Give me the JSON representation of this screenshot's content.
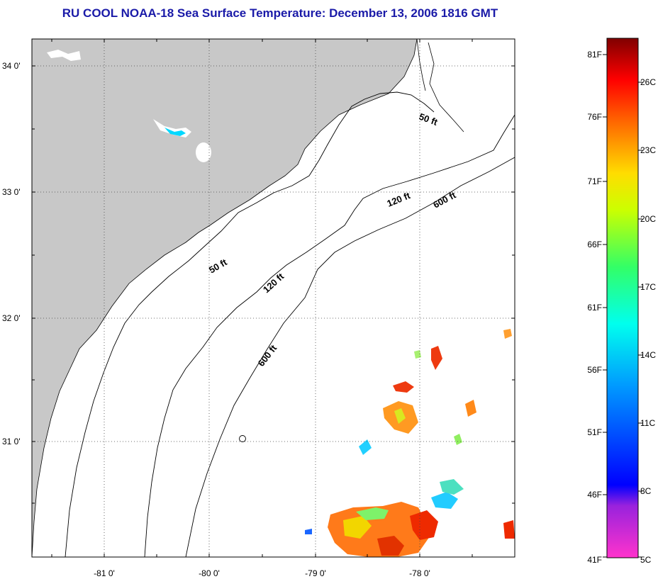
{
  "title": "RU COOL  NOAA-18  Sea Surface Temperature:  December 13, 2006 1816 GMT",
  "map": {
    "latitude_labels": [
      "34 0'",
      "33 0'",
      "32 0'",
      "31 0'"
    ],
    "longitude_labels": [
      "-81 0'",
      "-80 0'",
      "-79 0'",
      "-78 0'"
    ],
    "isobath_labels": [
      "50 ft",
      "120 ft",
      "600 ft",
      "50 ft",
      "120 ft",
      "600 ft"
    ],
    "colors": {
      "land": "#c8c8c8",
      "ocean": "#ffffff",
      "grid": "#444444"
    }
  },
  "colorbar": {
    "fahrenheit_labels": [
      "81F",
      "76F",
      "71F",
      "66F",
      "61F",
      "56F",
      "51F",
      "46F",
      "41F"
    ],
    "celsius_labels": [
      "26C",
      "23C",
      "20C",
      "17C",
      "14C",
      "11C",
      "8C",
      "5C"
    ],
    "gradient_colors": [
      "#ff33cc",
      "#0000ff",
      "#00ffff",
      "#00ff66",
      "#ffff00",
      "#ff6600",
      "#ff0000",
      "#800000"
    ]
  }
}
